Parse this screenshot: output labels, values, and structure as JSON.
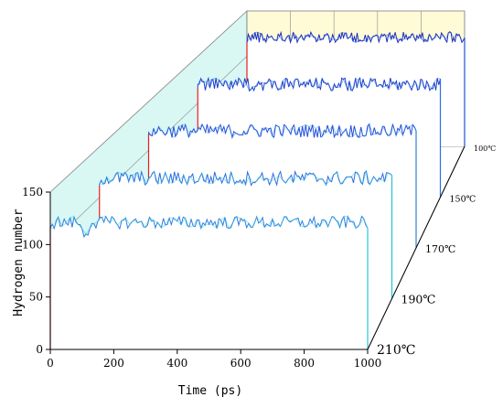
{
  "chart_data": {
    "type": "line",
    "title": "",
    "xlabel": "Time (ps)",
    "ylabel": "Hydrogen number",
    "xlim": [
      0,
      1000
    ],
    "ylim": [
      0,
      150
    ],
    "x_ticks": [
      0,
      200,
      400,
      600,
      800,
      1000
    ],
    "y_ticks": [
      0,
      50,
      100,
      150
    ],
    "grid": true,
    "background": {
      "back_wall": "#fffbd6",
      "side_wall": "#d9f7f3"
    },
    "series": [
      {
        "name": "210℃",
        "color": "#2f7fe0",
        "color_alt": "#27c4d6",
        "start_value": 0,
        "rise_value": 117,
        "plateau_mean": 121,
        "plateau_noise": 6
      },
      {
        "name": "190℃",
        "color": "#2a6de0",
        "color_alt": "#27c4d6",
        "start_value": 0,
        "rise_value": 112,
        "plateau_mean": 119,
        "plateau_noise": 7
      },
      {
        "name": "170℃",
        "color": "#2050d8",
        "color_alt": "#2f7fe0",
        "start_value": 0,
        "rise_value": 117,
        "plateau_mean": 120,
        "plateau_noise": 7
      },
      {
        "name": "150℃",
        "color": "#1a3ec8",
        "color_alt": "#2a6de0",
        "start_value": 0,
        "rise_value": 116,
        "plateau_mean": 120,
        "plateau_noise": 7
      },
      {
        "name": "100℃",
        "color": "#1a2fb8",
        "color_alt": "#2050d8",
        "start_value": 0,
        "rise_value": 115,
        "plateau_mean": 121,
        "plateau_noise": 6
      }
    ]
  }
}
